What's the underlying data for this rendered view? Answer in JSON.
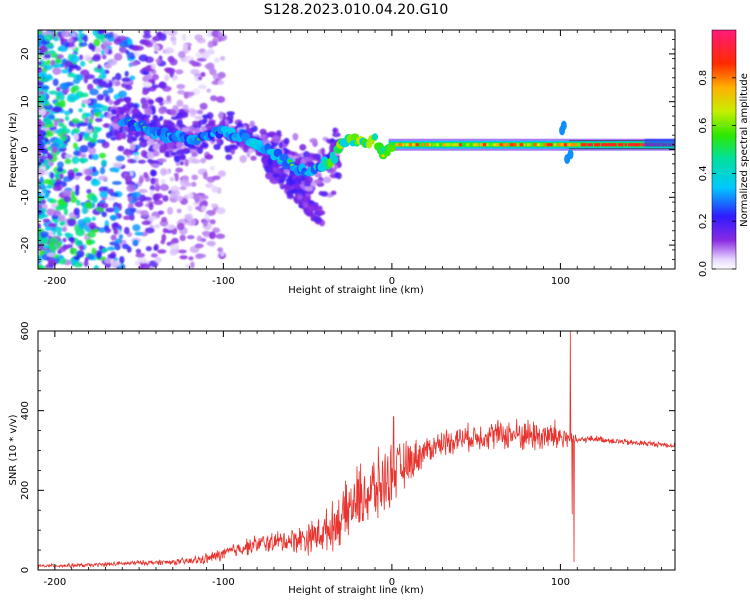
{
  "title": "S128.2023.010.04.20.G10",
  "chart_data": [
    {
      "type": "heatmap",
      "xlabel": "Height of straight line (km)",
      "ylabel": "Frequency (Hz)",
      "xlim": [
        -210,
        168
      ],
      "ylim": [
        -25,
        25
      ],
      "xticks": [
        -200,
        -100,
        0,
        100
      ],
      "yticks": [
        -20,
        -10,
        0,
        10,
        20
      ],
      "colorbar": {
        "label": "Normalized spectral amplitude",
        "range": [
          0,
          1
        ],
        "ticks": [
          "0.0",
          "0.2",
          "0.4",
          "0.6",
          "0.8"
        ],
        "colormap": "white-purple-blue-cyan-green-yellow-orange-red-pink"
      },
      "ridge": {
        "description_points_x": [
          -160,
          -150,
          -140,
          -130,
          -120,
          -110,
          -100,
          -90,
          -80,
          -70,
          -60,
          -50,
          -45,
          -40,
          -35,
          -30,
          -25,
          -20,
          -15,
          -10,
          -5,
          0,
          20,
          40,
          60,
          80,
          100,
          102,
          105,
          110,
          130,
          150,
          168
        ],
        "frequency_y": [
          6,
          5,
          3,
          3,
          2,
          3,
          4,
          3,
          1,
          -1,
          -3,
          -5,
          -4,
          -3,
          -2,
          1,
          2,
          2,
          1,
          2,
          -1,
          1,
          1,
          1,
          1,
          1,
          1,
          3,
          -1,
          1,
          1,
          1,
          1.5
        ]
      }
    },
    {
      "type": "line",
      "xlabel": "Height of straight line (km)",
      "ylabel": "SNR (10 * v/v)",
      "xlim": [
        -210,
        168
      ],
      "ylim": [
        0,
        600
      ],
      "xticks": [
        -200,
        -100,
        0,
        100
      ],
      "yticks": [
        0,
        200,
        400,
        600
      ],
      "color": "#e8332e",
      "trend_x": [
        -210,
        -180,
        -150,
        -130,
        -120,
        -110,
        -100,
        -90,
        -80,
        -70,
        -60,
        -50,
        -40,
        -30,
        -20,
        -10,
        0,
        10,
        20,
        30,
        40,
        50,
        60,
        70,
        80,
        90,
        100,
        105,
        110,
        120,
        130,
        140,
        150,
        160,
        168
      ],
      "trend_y": [
        10,
        12,
        18,
        20,
        22,
        28,
        40,
        55,
        65,
        70,
        75,
        80,
        95,
        130,
        180,
        200,
        240,
        270,
        300,
        320,
        330,
        335,
        340,
        340,
        340,
        335,
        335,
        330,
        325,
        330,
        325,
        320,
        318,
        315,
        312
      ],
      "noise_amp_x": [
        -210,
        -130,
        -100,
        -60,
        -40,
        -20,
        -10,
        0,
        20,
        50,
        80,
        100,
        110,
        168
      ],
      "noise_amp_y": [
        5,
        8,
        20,
        35,
        60,
        100,
        110,
        90,
        40,
        40,
        50,
        50,
        10,
        8
      ],
      "spikes": [
        {
          "x": 106,
          "y": 600
        },
        {
          "x": 107,
          "y": 140
        },
        {
          "x": 108,
          "y": 20
        },
        {
          "x": 1,
          "y": 385
        }
      ]
    }
  ]
}
